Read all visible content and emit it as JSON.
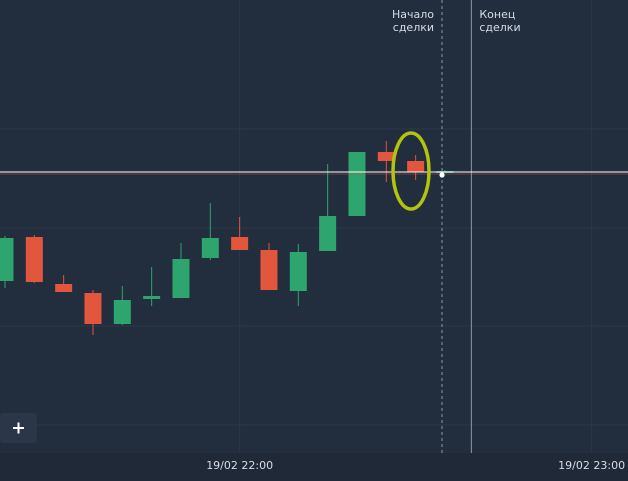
{
  "chart_data": {
    "type": "candlestick",
    "x": [
      0,
      1,
      2,
      3,
      4,
      5,
      6,
      7,
      8,
      9,
      10,
      11,
      12,
      13,
      14,
      15
    ],
    "open": [
      172,
      216,
      169,
      160,
      129,
      154,
      155,
      195,
      216,
      203,
      162,
      202,
      237,
      301,
      292,
      281
    ],
    "close": [
      215,
      171,
      161,
      129,
      153,
      157,
      194,
      215,
      203,
      163,
      201,
      237,
      301,
      292,
      281,
      282
    ],
    "high": [
      217,
      218,
      178,
      163,
      167,
      186,
      210,
      250,
      236,
      210,
      209,
      289,
      301,
      312,
      298,
      283
    ],
    "low": [
      165,
      170,
      161,
      118,
      128,
      147,
      155,
      193,
      203,
      163,
      147,
      202,
      239,
      271,
      273,
      280
    ],
    "up_color": "#2ea46e",
    "down_color": "#e1563d",
    "xlim": [
      -0.17,
      21.24
    ],
    "ylim": [
      0,
      453
    ],
    "xticks": [
      {
        "value": 8,
        "label": "19/02 22:00"
      },
      {
        "value": 20,
        "label": "19/02 23:00"
      }
    ],
    "price_line": 281,
    "trade_start": {
      "x": 14.9,
      "label": [
        "Начало",
        "сделки"
      ]
    },
    "trade_end": {
      "x": 15.9,
      "label": [
        "Конец",
        "сделки"
      ]
    }
  }
}
